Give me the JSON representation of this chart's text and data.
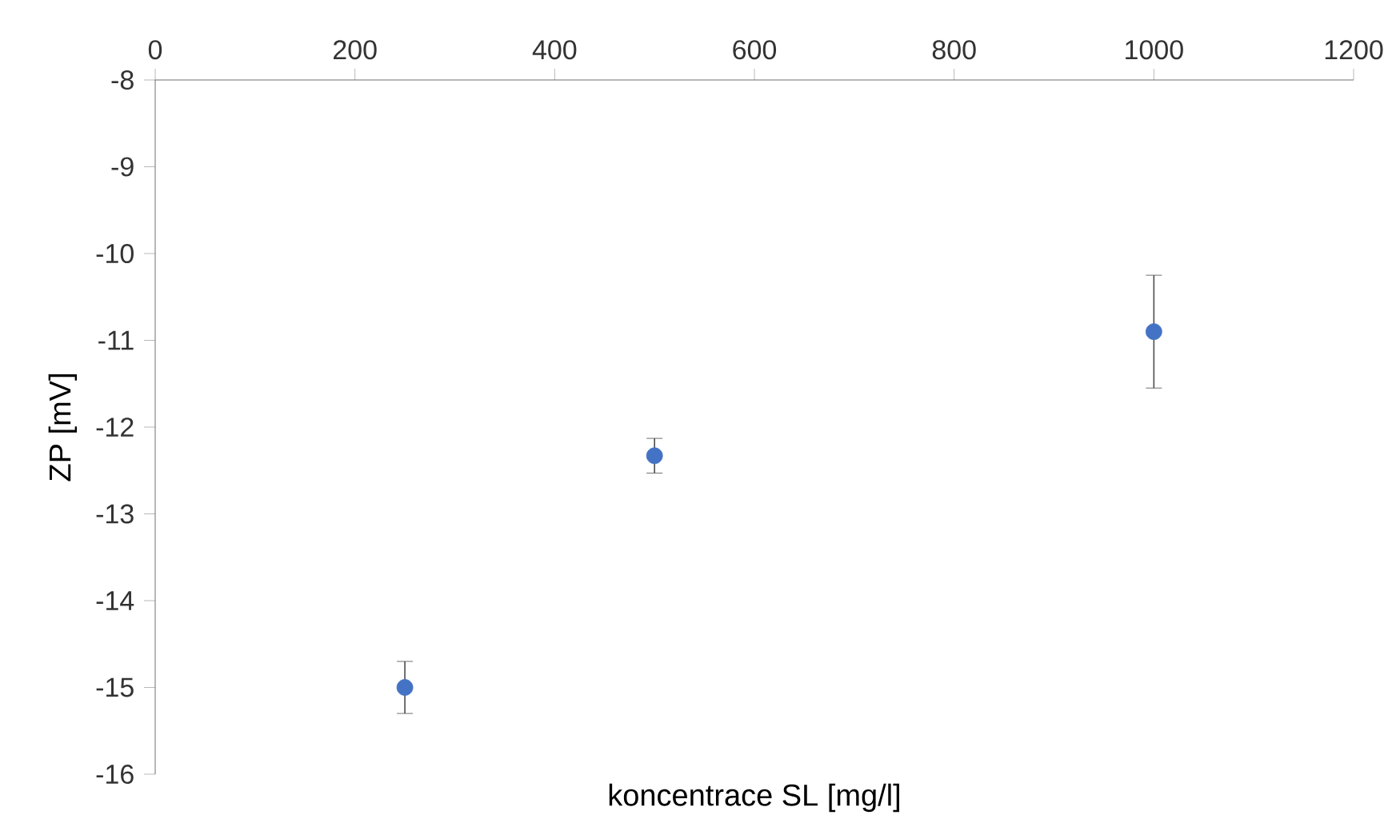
{
  "chart_data": {
    "type": "scatter",
    "xlabel": "koncentrace SL [mg/l]",
    "ylabel": "ZP [mV]",
    "x": [
      250,
      500,
      1000
    ],
    "series": [
      {
        "color": "#4472c4",
        "values": [
          -15.0,
          -12.33,
          -10.9
        ],
        "errors": [
          0.3,
          0.2,
          0.65
        ]
      }
    ],
    "xlim": [
      0,
      1200
    ],
    "xticks": [
      0,
      200,
      400,
      600,
      800,
      1000,
      1200
    ],
    "ylim": [
      -16,
      -8
    ],
    "yticks": [
      -16,
      -15,
      -14,
      -13,
      -12,
      -11,
      -10,
      -9,
      -8
    ],
    "marker": "circle",
    "grid": false
  }
}
